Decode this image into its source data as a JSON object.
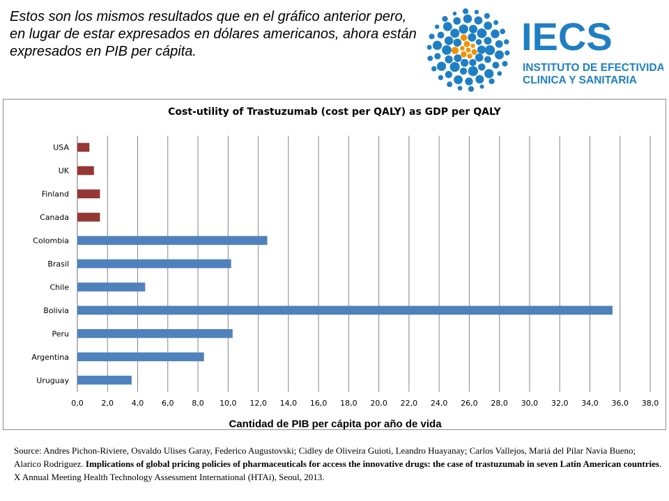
{
  "intro": {
    "text": "Estos son los mismos resultados que en el gráfico anterior pero, en lugar de estar expresados en dólares americanos, ahora están expresados en PIB per cápita."
  },
  "logo": {
    "name": "IECS",
    "line1": "INSTITUTO DE EFECTIVIDAD",
    "line2": "CLINICA Y SANITARIA",
    "color_blue": "#1f7fc4",
    "color_orange": "#f39200"
  },
  "chart_data": {
    "type": "bar",
    "orientation": "horizontal",
    "title": "Cost-utility of Trastuzumab (cost per QALY) as GDP per QALY",
    "xlabel": "Cantidad de PIB per cápita por año de vida",
    "ylabel": "",
    "xlim": [
      0,
      38
    ],
    "xticks": [
      "0,0",
      "2,0",
      "4,0",
      "6,0",
      "8,0",
      "10,0",
      "12,0",
      "14,0",
      "16,0",
      "18,0",
      "20,0",
      "22,0",
      "24,0",
      "26,0",
      "28,0",
      "30,0",
      "32,0",
      "34,0",
      "36,0",
      "38,0"
    ],
    "grid": true,
    "categories": [
      "USA",
      "UK",
      "Finland",
      "Canada",
      "Colombia",
      "Brasil",
      "Chile",
      "Bolivia",
      "Peru",
      "Argentina",
      "Uruguay"
    ],
    "values": [
      0.8,
      1.1,
      1.5,
      1.5,
      12.6,
      10.2,
      4.5,
      35.5,
      10.3,
      8.4,
      3.6
    ],
    "colors": [
      "#953735",
      "#953735",
      "#953735",
      "#953735",
      "#4f81bd",
      "#4f81bd",
      "#4f81bd",
      "#4f81bd",
      "#4f81bd",
      "#4f81bd",
      "#4f81bd"
    ]
  },
  "source": {
    "prefix": "Source: Andres Pichon-Riviere, Osvaldo Ulises Garay, Federico Augustovski; Cidley de Oliveira Guioti, Leandro Huayanay; Carlos Vallejos, Mariá del Pilar Navia Bueno; Alarico Rodriguez. ",
    "title": "Implications of global pricing policies of pharmaceuticals for access the innovative drugs: the case of trastuzumab in seven Latin American countries",
    "suffix": ". X Annual Meeting Health Technology Assessment International (HTAi), Seoul, 2013."
  }
}
